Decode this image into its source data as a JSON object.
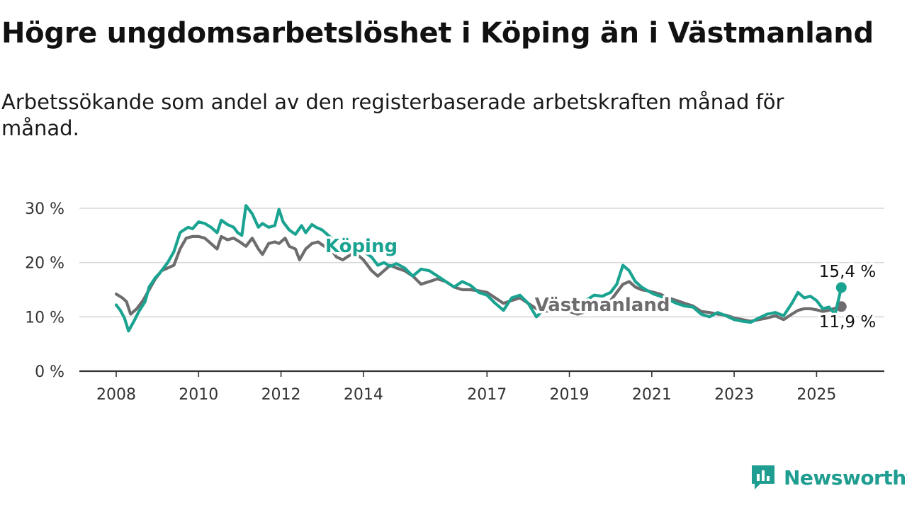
{
  "title": "Högre ungdomsarbetslöshet i Köping än i Västmanland",
  "subtitle": "Arbetssökande som andel av den registerbaserade arbetskraften månad för månad.",
  "brand": "Newsworthy",
  "colors": {
    "koping": "#1aa391",
    "vastmanland": "#6e6c6e",
    "grid": "#d9d9d9",
    "axis": "#333333"
  },
  "chart_data": {
    "type": "line",
    "title": "Högre ungdomsarbetslöshet i Köping än i Västmanland",
    "xlabel": "",
    "ylabel": "",
    "x_range": [
      2008.0,
      2025.75
    ],
    "ylim": [
      0,
      30
    ],
    "y_ticks": [
      0,
      10,
      20,
      30
    ],
    "y_tick_labels": [
      "0 %",
      "10 %",
      "20 %",
      "30 %"
    ],
    "x_ticks": [
      2008,
      2010,
      2012,
      2014,
      2017,
      2019,
      2021,
      2023,
      2025
    ],
    "x_tick_labels": [
      "2008",
      "2010",
      "2012",
      "2014",
      "2017",
      "2019",
      "2021",
      "2023",
      "2025"
    ],
    "grid": "horizontal",
    "end_labels": [
      "15,4 %",
      "11,9 %"
    ],
    "series": [
      {
        "name": "Köping",
        "key": "koping",
        "x": [
          2008.0,
          2008.1,
          2008.2,
          2008.3,
          2008.45,
          2008.55,
          2008.7,
          2008.8,
          2008.95,
          2009.05,
          2009.25,
          2009.4,
          2009.55,
          2009.6,
          2009.75,
          2009.85,
          2010.0,
          2010.15,
          2010.3,
          2010.45,
          2010.55,
          2010.7,
          2010.85,
          2010.95,
          2011.05,
          2011.15,
          2011.3,
          2011.45,
          2011.55,
          2011.7,
          2011.85,
          2011.95,
          2012.05,
          2012.2,
          2012.35,
          2012.5,
          2012.6,
          2012.75,
          2012.85,
          2013.0,
          2013.15,
          2013.3,
          2013.45,
          2013.6,
          2013.75,
          2013.9,
          2014.05,
          2014.2,
          2014.35,
          2014.5,
          2014.65,
          2014.8,
          2015.0,
          2015.2,
          2015.4,
          2015.6,
          2015.8,
          2016.0,
          2016.2,
          2016.4,
          2016.6,
          2016.8,
          2017.0,
          2017.2,
          2017.4,
          2017.6,
          2017.8,
          2018.0,
          2018.2,
          2018.4,
          2018.6,
          2018.8,
          2019.0,
          2019.2,
          2019.4,
          2019.6,
          2019.8,
          2020.0,
          2020.15,
          2020.3,
          2020.45,
          2020.6,
          2020.75,
          2020.9,
          2021.05,
          2021.2,
          2021.4,
          2021.6,
          2021.8,
          2022.0,
          2022.2,
          2022.4,
          2022.6,
          2022.8,
          2023.0,
          2023.2,
          2023.4,
          2023.6,
          2023.8,
          2024.0,
          2024.2,
          2024.4,
          2024.55,
          2024.7,
          2024.85,
          2025.0,
          2025.15,
          2025.3,
          2025.45,
          2025.6
        ],
        "y": [
          12.2,
          11.2,
          9.8,
          7.4,
          9.5,
          11.0,
          12.8,
          15.5,
          17.2,
          18.0,
          20.0,
          22.0,
          25.5,
          25.8,
          26.5,
          26.2,
          27.5,
          27.2,
          26.5,
          25.5,
          27.8,
          27.0,
          26.5,
          25.5,
          25.0,
          30.5,
          29.0,
          26.5,
          27.2,
          26.5,
          26.8,
          29.8,
          27.5,
          26.0,
          25.2,
          26.8,
          25.5,
          27.0,
          26.5,
          26.0,
          25.0,
          24.0,
          23.5,
          22.5,
          22.8,
          23.0,
          21.8,
          21.0,
          19.5,
          20.0,
          19.3,
          19.8,
          19.0,
          17.5,
          18.8,
          18.5,
          17.5,
          16.5,
          15.5,
          16.5,
          15.8,
          14.5,
          14.0,
          12.5,
          11.2,
          13.5,
          14.0,
          12.5,
          10.0,
          11.5,
          11.0,
          11.5,
          11.2,
          12.0,
          13.0,
          14.0,
          13.8,
          14.5,
          16.0,
          19.5,
          18.5,
          16.5,
          15.5,
          14.8,
          14.2,
          13.8,
          13.2,
          12.5,
          12.0,
          11.8,
          10.5,
          10.0,
          10.8,
          10.2,
          9.5,
          9.2,
          9.0,
          9.8,
          10.5,
          10.8,
          10.2,
          12.5,
          14.5,
          13.5,
          13.8,
          13.0,
          11.5,
          11.8,
          10.5,
          15.4
        ]
      },
      {
        "name": "Västmanland",
        "key": "vastmanland",
        "x": [
          2008.0,
          2008.15,
          2008.25,
          2008.35,
          2008.5,
          2008.65,
          2008.8,
          2008.95,
          2009.1,
          2009.25,
          2009.4,
          2009.55,
          2009.7,
          2009.85,
          2010.0,
          2010.15,
          2010.3,
          2010.45,
          2010.55,
          2010.7,
          2010.85,
          2011.0,
          2011.15,
          2011.3,
          2011.45,
          2011.55,
          2011.7,
          2011.85,
          2011.95,
          2012.1,
          2012.2,
          2012.35,
          2012.45,
          2012.6,
          2012.75,
          2012.9,
          2013.05,
          2013.2,
          2013.35,
          2013.5,
          2013.7,
          2013.85,
          2014.0,
          2014.2,
          2014.35,
          2014.5,
          2014.65,
          2014.8,
          2015.0,
          2015.2,
          2015.4,
          2015.6,
          2015.8,
          2016.0,
          2016.2,
          2016.4,
          2016.6,
          2016.8,
          2017.0,
          2017.2,
          2017.4,
          2017.6,
          2017.8,
          2018.0,
          2018.2,
          2018.4,
          2018.6,
          2018.8,
          2019.0,
          2019.2,
          2019.4,
          2019.6,
          2019.8,
          2020.0,
          2020.15,
          2020.3,
          2020.45,
          2020.6,
          2020.75,
          2020.9,
          2021.05,
          2021.2,
          2021.4,
          2021.6,
          2021.8,
          2022.0,
          2022.2,
          2022.4,
          2022.6,
          2022.8,
          2023.0,
          2023.2,
          2023.4,
          2023.6,
          2023.8,
          2024.0,
          2024.2,
          2024.4,
          2024.55,
          2024.7,
          2024.85,
          2025.0,
          2025.15,
          2025.3,
          2025.45,
          2025.6
        ],
        "y": [
          14.2,
          13.5,
          12.8,
          10.5,
          11.5,
          13.0,
          15.0,
          17.0,
          18.5,
          19.0,
          19.5,
          22.5,
          24.5,
          24.8,
          24.8,
          24.5,
          23.5,
          22.5,
          24.8,
          24.2,
          24.5,
          23.8,
          23.0,
          24.5,
          22.5,
          21.5,
          23.5,
          23.8,
          23.5,
          24.5,
          23.0,
          22.5,
          20.5,
          22.5,
          23.5,
          23.8,
          23.0,
          22.5,
          21.0,
          20.5,
          21.5,
          21.5,
          20.5,
          18.5,
          17.5,
          18.5,
          19.5,
          19.0,
          18.5,
          17.5,
          16.0,
          16.5,
          17.0,
          16.5,
          15.5,
          15.0,
          15.0,
          14.8,
          14.5,
          13.5,
          12.5,
          13.0,
          13.5,
          12.5,
          11.5,
          11.0,
          11.2,
          11.5,
          11.0,
          10.5,
          11.0,
          11.5,
          12.0,
          13.0,
          14.5,
          16.0,
          16.5,
          15.5,
          15.0,
          14.8,
          14.5,
          14.2,
          13.5,
          13.0,
          12.5,
          12.0,
          11.0,
          10.8,
          10.5,
          10.3,
          9.8,
          9.5,
          9.2,
          9.5,
          9.8,
          10.2,
          9.5,
          10.5,
          11.2,
          11.5,
          11.5,
          11.3,
          11.0,
          11.2,
          11.6,
          11.9
        ]
      }
    ]
  }
}
